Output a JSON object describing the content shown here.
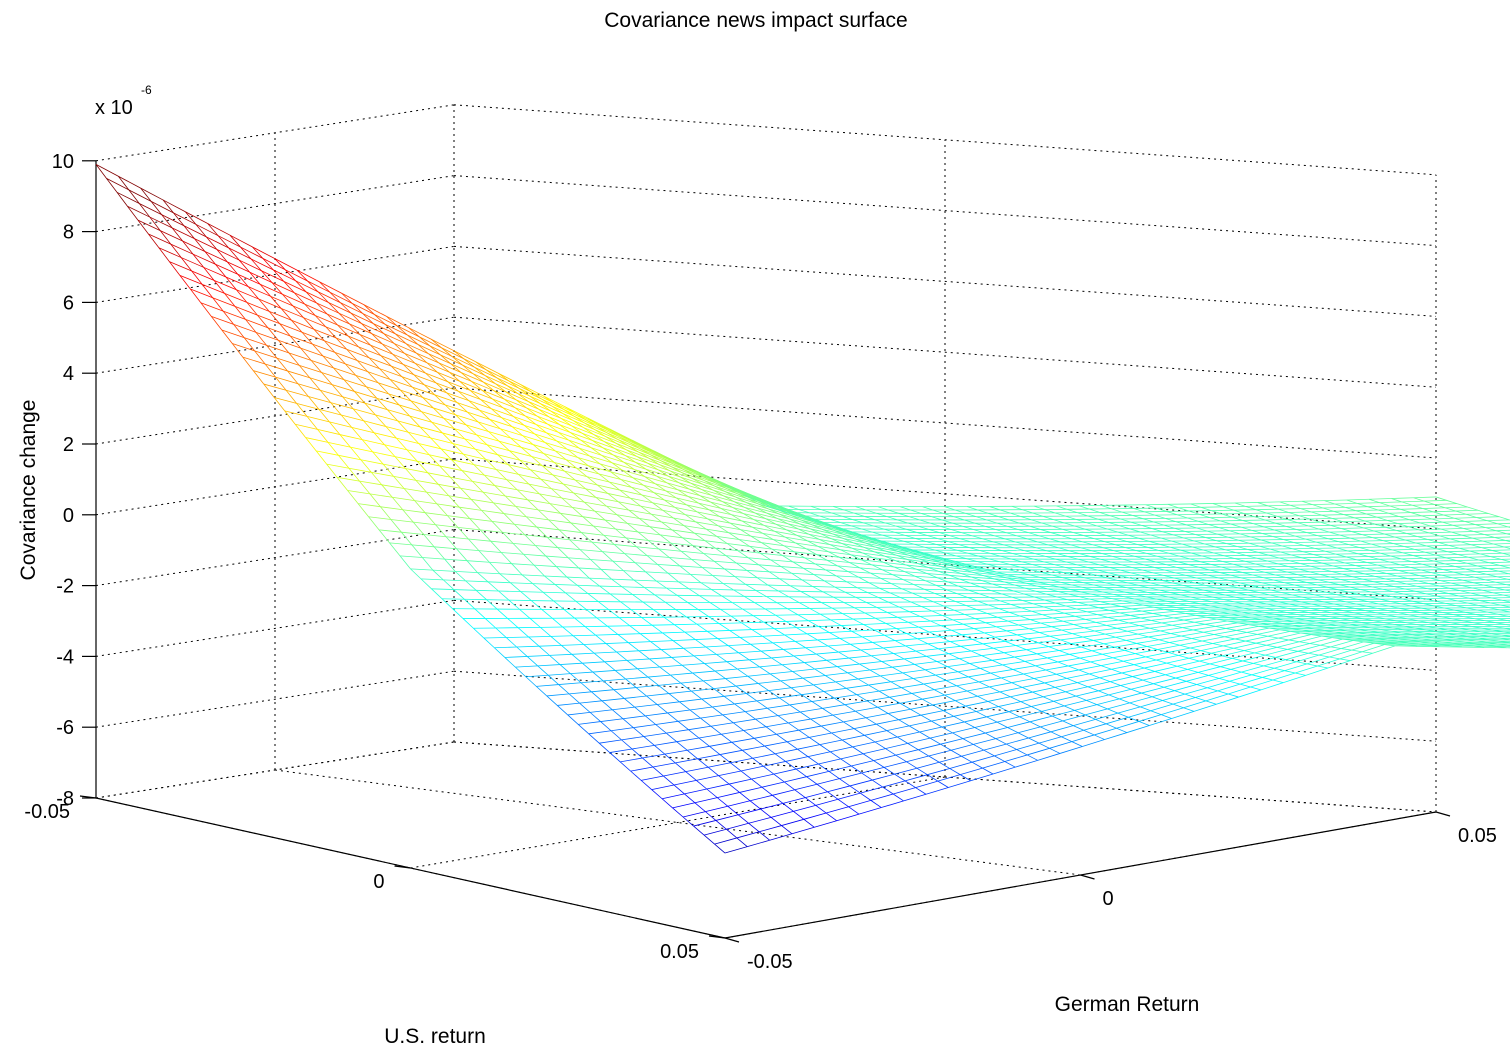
{
  "chart_data": {
    "type": "surface",
    "title": "Covariance news impact surface",
    "xlabel": "German Return",
    "ylabel": "U.S. return",
    "zlabel": "Covariance change",
    "z_multiplier": "x 10",
    "z_multiplier_exponent": "-6",
    "xlim": [
      -0.05,
      0.05
    ],
    "ylim": [
      -0.05,
      0.05
    ],
    "zlim": [
      -8,
      10
    ],
    "x_ticks": [
      "-0.05",
      "0",
      "0.05"
    ],
    "y_ticks": [
      "-0.05",
      "0",
      "0.05"
    ],
    "z_ticks": [
      "10",
      "8",
      "6",
      "4",
      "2",
      "0",
      "-2",
      "-4",
      "-6",
      "-8"
    ],
    "grid": true,
    "grid_style": "dotted",
    "colormap": "jet",
    "mesh_resolution": 60,
    "corner_values": [
      {
        "german": -0.05,
        "us": -0.05,
        "z": 9.0
      },
      {
        "german": -0.05,
        "us": 0.05,
        "z": -6.5
      },
      {
        "german": 0.05,
        "us": -0.05,
        "z": 0.0
      },
      {
        "german": 0.05,
        "us": 0.05,
        "z": 0.0
      }
    ],
    "edge_values": [
      {
        "german": -0.05,
        "us": 0.0,
        "z": 0.3
      },
      {
        "german": 0.0,
        "us": -0.05,
        "z": 0.8
      },
      {
        "german": 0.0,
        "us": 0.05,
        "z": 0.6
      },
      {
        "german": 0.05,
        "us": 0.0,
        "z": 0.0
      }
    ]
  }
}
